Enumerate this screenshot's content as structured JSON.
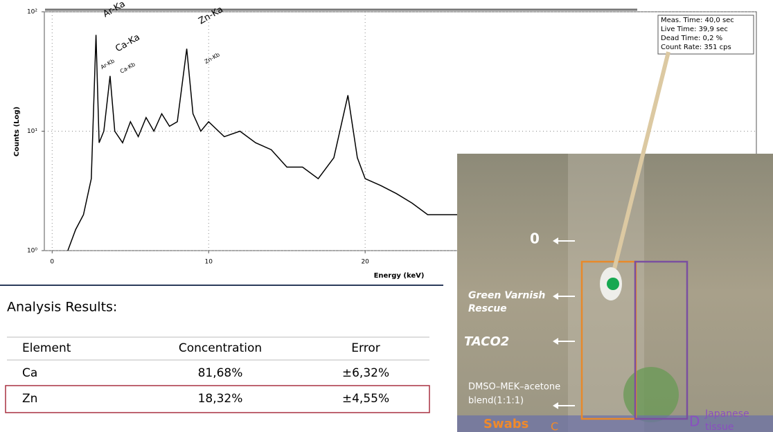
{
  "chart_data": {
    "type": "line",
    "y_label": "Counts (Log)",
    "x_label": "Energy (keV)",
    "log_y": true,
    "grid": true,
    "color": "#000000",
    "x": [
      1.0,
      1.5,
      2.0,
      2.5,
      2.8,
      3.0,
      3.3,
      3.7,
      4.0,
      4.5,
      5.0,
      5.5,
      6.0,
      6.5,
      7.0,
      7.5,
      8.0,
      8.6,
      9.0,
      9.5,
      10.0,
      11.0,
      12.0,
      13.0,
      14.0,
      15.0,
      16.0,
      17.0,
      18.0,
      18.9,
      19.5,
      20.0,
      21.0,
      22.0,
      23.0,
      24.0,
      25.0,
      26.0
    ],
    "values": [
      1,
      1.5,
      2,
      4,
      64,
      8,
      10,
      29,
      10,
      8,
      12,
      9,
      13,
      10,
      14,
      11,
      12,
      49,
      14,
      10,
      12,
      9,
      10,
      8,
      7,
      5,
      5,
      4,
      6,
      20,
      6,
      4,
      3.5,
      3,
      2.5,
      2,
      2,
      2
    ],
    "xlim": [
      -0.5,
      45
    ],
    "ylim": [
      1,
      100
    ],
    "xticks": [
      0,
      10,
      20
    ],
    "yticks": [
      {
        "value": 1,
        "label": "10⁰"
      },
      {
        "value": 10,
        "label": "10¹"
      },
      {
        "value": 100,
        "label": "10²"
      }
    ],
    "annotations": [
      "Ar-Ka",
      "Ca-Ka",
      "Zn-Ka",
      "Ar-Kb",
      "Ca-Kb",
      "Zn-Kb"
    ],
    "info_box": [
      "Meas. Time: 40,0 sec",
      "Live Time: 39,9 sec",
      "Dead Time: 0,2 %",
      "Count Rate: 351 cps"
    ]
  },
  "table": {
    "title": "Analysis Results:",
    "header": [
      "Element",
      "Concentration",
      "Error"
    ],
    "rows": [
      [
        "Ca",
        "81,68%",
        "±6,32%"
      ],
      [
        "Zn",
        "18,32%",
        "±4,55%"
      ]
    ]
  },
  "photo": {
    "zero": "0",
    "green_varnish": [
      "Green Varnish",
      "Rescue"
    ],
    "taco": "TACO2",
    "dmso": [
      "DMSO–MEK–acetone",
      "blend(1:1:1)"
    ],
    "swabs": "Swabs",
    "c": "C",
    "d": "D",
    "japanese": [
      "Japanese",
      "tissue"
    ]
  }
}
